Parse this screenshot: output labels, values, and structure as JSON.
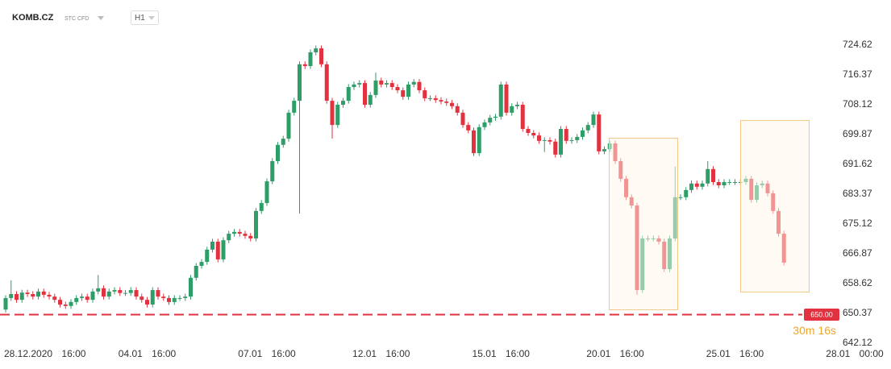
{
  "chart_data": {
    "type": "candlestick",
    "title": "KOMB.CZ",
    "subtitle": "STC CFD",
    "timeframe": "H1",
    "up_color": "#2e9e68",
    "down_color": "#e2323f",
    "ylim": [
      641.2,
      730.4
    ],
    "yticks": [
      724.62,
      716.37,
      708.12,
      699.87,
      691.62,
      683.37,
      675.12,
      666.87,
      658.62,
      650.37,
      642.12
    ],
    "price_line": {
      "value": 650,
      "label": "650.00",
      "color": "#e2323f"
    },
    "countdown": "30m 16s",
    "categories": [
      "28.12.2020 16:00",
      null,
      null,
      null,
      null,
      null,
      null,
      null,
      null,
      null,
      null,
      null,
      null,
      null,
      null,
      null,
      null,
      null,
      null,
      null,
      null,
      null,
      null,
      null,
      null,
      null,
      "04.01 16:00",
      null,
      null,
      null,
      null,
      null,
      null,
      null,
      null,
      null,
      null,
      null,
      null,
      null,
      null,
      null,
      null,
      null,
      null,
      null,
      null,
      null,
      "07.01 16:00",
      null,
      null,
      null,
      null,
      null,
      null,
      null,
      null,
      null,
      null,
      null,
      null,
      null,
      null,
      null,
      null,
      null,
      null,
      null,
      null,
      "12.01 16:00",
      null,
      null,
      null,
      null,
      null,
      null,
      null,
      null,
      null,
      null,
      null,
      null,
      null,
      null,
      null,
      null,
      null,
      null,
      null,
      null,
      null,
      "15.01 16:00",
      null,
      null,
      null,
      null,
      null,
      null,
      null,
      null,
      null,
      null,
      null,
      null,
      null,
      null,
      null,
      null,
      null,
      null,
      null,
      null,
      "20.01 16:00",
      null,
      null,
      null,
      null,
      null,
      null,
      null,
      null,
      null,
      null,
      null,
      null,
      null,
      null,
      null,
      null,
      null,
      null,
      null,
      null,
      null,
      "25.01 16:00",
      null,
      null,
      null,
      null,
      null,
      null,
      null,
      null,
      null,
      null,
      null,
      null,
      null,
      null,
      null,
      null,
      null,
      null,
      null,
      null,
      null,
      "28.01 00:00"
    ],
    "open": [
      651.4,
      654.6,
      655.7,
      654.1,
      656.1,
      655.7,
      655.0,
      656.4,
      655.5,
      655.0,
      654.1,
      652.8,
      652.4,
      653.5,
      654.6,
      655.0,
      654.1,
      656.4,
      657.3,
      655.0,
      656.4,
      656.8,
      656.0,
      656.0,
      656.8,
      655.0,
      654.1,
      652.8,
      656.8,
      655.0,
      654.6,
      653.5,
      654.6,
      654.6,
      655.0,
      660.2,
      663.5,
      664.6,
      668.0,
      670.2,
      665.3,
      670.6,
      672.4,
      672.9,
      672.4,
      671.8,
      671.1,
      678.7,
      680.9,
      686.9,
      692.5,
      697.0,
      698.7,
      705.9,
      709.2,
      719.3,
      718.8,
      722.6,
      723.7,
      719.3,
      709.2,
      702.5,
      708.1,
      709.2,
      713.0,
      713.7,
      714.1,
      708.1,
      710.8,
      714.8,
      713.7,
      714.1,
      713.0,
      712.1,
      710.3,
      713.7,
      714.4,
      712.1,
      709.9,
      709.9,
      709.4,
      709.0,
      708.6,
      707.7,
      705.9,
      702.5,
      701.0,
      694.7,
      701.9,
      703.2,
      704.5,
      704.8,
      713.7,
      705.9,
      707.7,
      708.1,
      701.4,
      700.3,
      699.6,
      698.1,
      698.3,
      697.9,
      694.3,
      701.4,
      698.1,
      698.3,
      699.2,
      701.0,
      702.5,
      705.4,
      695.2,
      695.8,
      697.4,
      692.5,
      687.6,
      682.5,
      680.2,
      656.8,
      671.1,
      671.1,
      671.1,
      670.2,
      662.6,
      671.1,
      682.5,
      682.5,
      684.5,
      686.3,
      685.4,
      686.3,
      690.3,
      686.7,
      685.8,
      686.7,
      686.7,
      686.7,
      686.7,
      687.6,
      681.8,
      685.8,
      686.3,
      683.6,
      678.7,
      672.4,
      null,
      null,
      null,
      null,
      null,
      null,
      null,
      null,
      null,
      null,
      null,
      null,
      null
    ],
    "high": [
      655.4,
      659.5,
      656.5,
      656.9,
      656.9,
      656.5,
      657.2,
      657.2,
      656.3,
      655.8,
      654.9,
      653.6,
      654.3,
      655.4,
      655.8,
      655.8,
      657.2,
      661.0,
      658.1,
      657.2,
      657.6,
      657.6,
      656.8,
      657.6,
      657.6,
      655.8,
      654.9,
      657.6,
      657.6,
      655.8,
      655.4,
      655.4,
      655.4,
      655.8,
      661.0,
      664.3,
      665.4,
      668.8,
      671.0,
      671.0,
      671.4,
      673.2,
      673.7,
      673.7,
      673.2,
      672.6,
      679.5,
      681.7,
      687.7,
      693.3,
      697.8,
      699.5,
      706.7,
      710.0,
      720.1,
      720.1,
      723.4,
      724.5,
      724.5,
      720.1,
      710.0,
      708.9,
      710.0,
      713.8,
      714.5,
      714.9,
      714.9,
      711.6,
      717.0,
      715.6,
      714.9,
      714.9,
      713.8,
      712.9,
      714.5,
      715.2,
      715.2,
      712.9,
      710.7,
      710.7,
      710.2,
      709.8,
      709.4,
      708.5,
      706.7,
      703.3,
      701.8,
      702.7,
      704.0,
      705.3,
      705.6,
      714.5,
      714.5,
      708.5,
      708.9,
      708.9,
      702.2,
      701.1,
      700.4,
      699.1,
      699.1,
      698.7,
      702.2,
      702.2,
      699.1,
      700.0,
      701.8,
      703.3,
      706.2,
      706.2,
      696.6,
      698.2,
      698.2,
      693.3,
      688.4,
      683.3,
      681.0,
      671.9,
      671.9,
      671.9,
      671.9,
      671.0,
      671.9,
      691.0,
      683.3,
      685.3,
      687.1,
      687.1,
      687.1,
      692.5,
      691.1,
      687.5,
      687.5,
      687.5,
      687.5,
      687.5,
      688.4,
      688.4,
      686.6,
      687.1,
      687.1,
      684.4,
      679.5,
      673.2,
      null,
      null,
      null,
      null,
      null,
      null,
      null,
      null,
      null,
      null,
      null,
      null,
      null
    ],
    "low": [
      650.6,
      653.8,
      653.3,
      653.3,
      654.9,
      654.2,
      654.2,
      654.7,
      654.2,
      653.3,
      652.0,
      651.6,
      651.6,
      652.7,
      653.8,
      653.3,
      653.3,
      655.6,
      654.2,
      654.2,
      655.6,
      655.2,
      655.2,
      655.2,
      654.2,
      653.3,
      652.0,
      652.0,
      654.2,
      653.8,
      652.7,
      652.7,
      653.8,
      653.8,
      654.2,
      659.4,
      662.7,
      663.8,
      667.2,
      664.5,
      664.5,
      669.8,
      671.6,
      671.6,
      671.0,
      670.3,
      670.3,
      677.9,
      680.1,
      686.1,
      691.7,
      696.2,
      697.9,
      705.1,
      678.0,
      718.0,
      718.0,
      721.8,
      718.5,
      708.4,
      698.7,
      701.7,
      707.3,
      708.4,
      712.2,
      712.9,
      707.3,
      707.3,
      710.0,
      712.9,
      712.9,
      712.2,
      711.3,
      709.5,
      709.5,
      712.9,
      711.3,
      709.1,
      709.1,
      708.6,
      708.2,
      707.8,
      706.9,
      705.1,
      701.7,
      700.2,
      693.9,
      693.9,
      701.1,
      702.4,
      703.7,
      704.0,
      705.1,
      705.1,
      706.9,
      700.6,
      699.5,
      698.8,
      697.3,
      695.0,
      697.1,
      693.5,
      693.5,
      697.3,
      697.3,
      697.5,
      698.4,
      700.2,
      701.7,
      694.4,
      694.4,
      695.0,
      691.7,
      686.8,
      681.7,
      679.4,
      655.5,
      656.0,
      670.3,
      670.3,
      669.4,
      661.8,
      661.8,
      670.3,
      681.7,
      681.7,
      683.7,
      684.6,
      684.6,
      685.5,
      685.9,
      685.0,
      685.0,
      685.9,
      685.9,
      685.9,
      685.9,
      681.0,
      681.0,
      685.0,
      682.8,
      677.9,
      671.6,
      663.6,
      null,
      null,
      null,
      null,
      null,
      null,
      null,
      null,
      null,
      null,
      null,
      null,
      null
    ],
    "close": [
      654.6,
      655.7,
      654.1,
      656.1,
      655.7,
      655.0,
      656.4,
      655.5,
      655.0,
      654.1,
      652.8,
      652.4,
      653.5,
      654.6,
      655.0,
      654.1,
      656.4,
      657.3,
      655.0,
      656.4,
      656.8,
      656.0,
      656.0,
      656.8,
      655.0,
      654.1,
      652.8,
      656.8,
      655.0,
      654.6,
      653.5,
      654.6,
      654.6,
      655.0,
      660.2,
      663.5,
      664.6,
      668.0,
      670.2,
      665.3,
      670.6,
      672.4,
      672.9,
      672.4,
      671.8,
      671.1,
      678.7,
      680.9,
      686.9,
      692.5,
      697.0,
      698.7,
      705.9,
      709.2,
      719.3,
      718.8,
      722.6,
      723.7,
      719.3,
      709.2,
      702.5,
      708.1,
      709.2,
      713.0,
      713.7,
      714.1,
      708.1,
      710.8,
      714.8,
      713.7,
      714.1,
      713.0,
      712.1,
      710.3,
      713.7,
      714.4,
      712.1,
      709.9,
      709.9,
      709.4,
      709.0,
      708.6,
      707.7,
      705.9,
      702.5,
      701.0,
      694.7,
      701.9,
      703.2,
      704.5,
      704.8,
      713.7,
      705.9,
      707.7,
      708.1,
      701.4,
      700.3,
      699.6,
      698.1,
      698.3,
      697.9,
      694.3,
      701.4,
      698.1,
      698.3,
      699.2,
      701.0,
      702.5,
      705.4,
      695.2,
      695.8,
      697.4,
      692.5,
      687.6,
      682.5,
      680.2,
      656.8,
      671.1,
      671.1,
      671.1,
      670.2,
      662.6,
      671.1,
      682.5,
      682.5,
      684.5,
      686.3,
      685.4,
      686.3,
      690.3,
      686.7,
      685.8,
      686.7,
      686.7,
      686.7,
      686.7,
      687.6,
      681.8,
      685.8,
      686.3,
      683.6,
      678.7,
      672.4,
      664.4,
      null,
      null,
      null,
      null,
      null,
      null,
      null,
      null,
      null,
      null,
      null,
      null,
      null
    ]
  }
}
